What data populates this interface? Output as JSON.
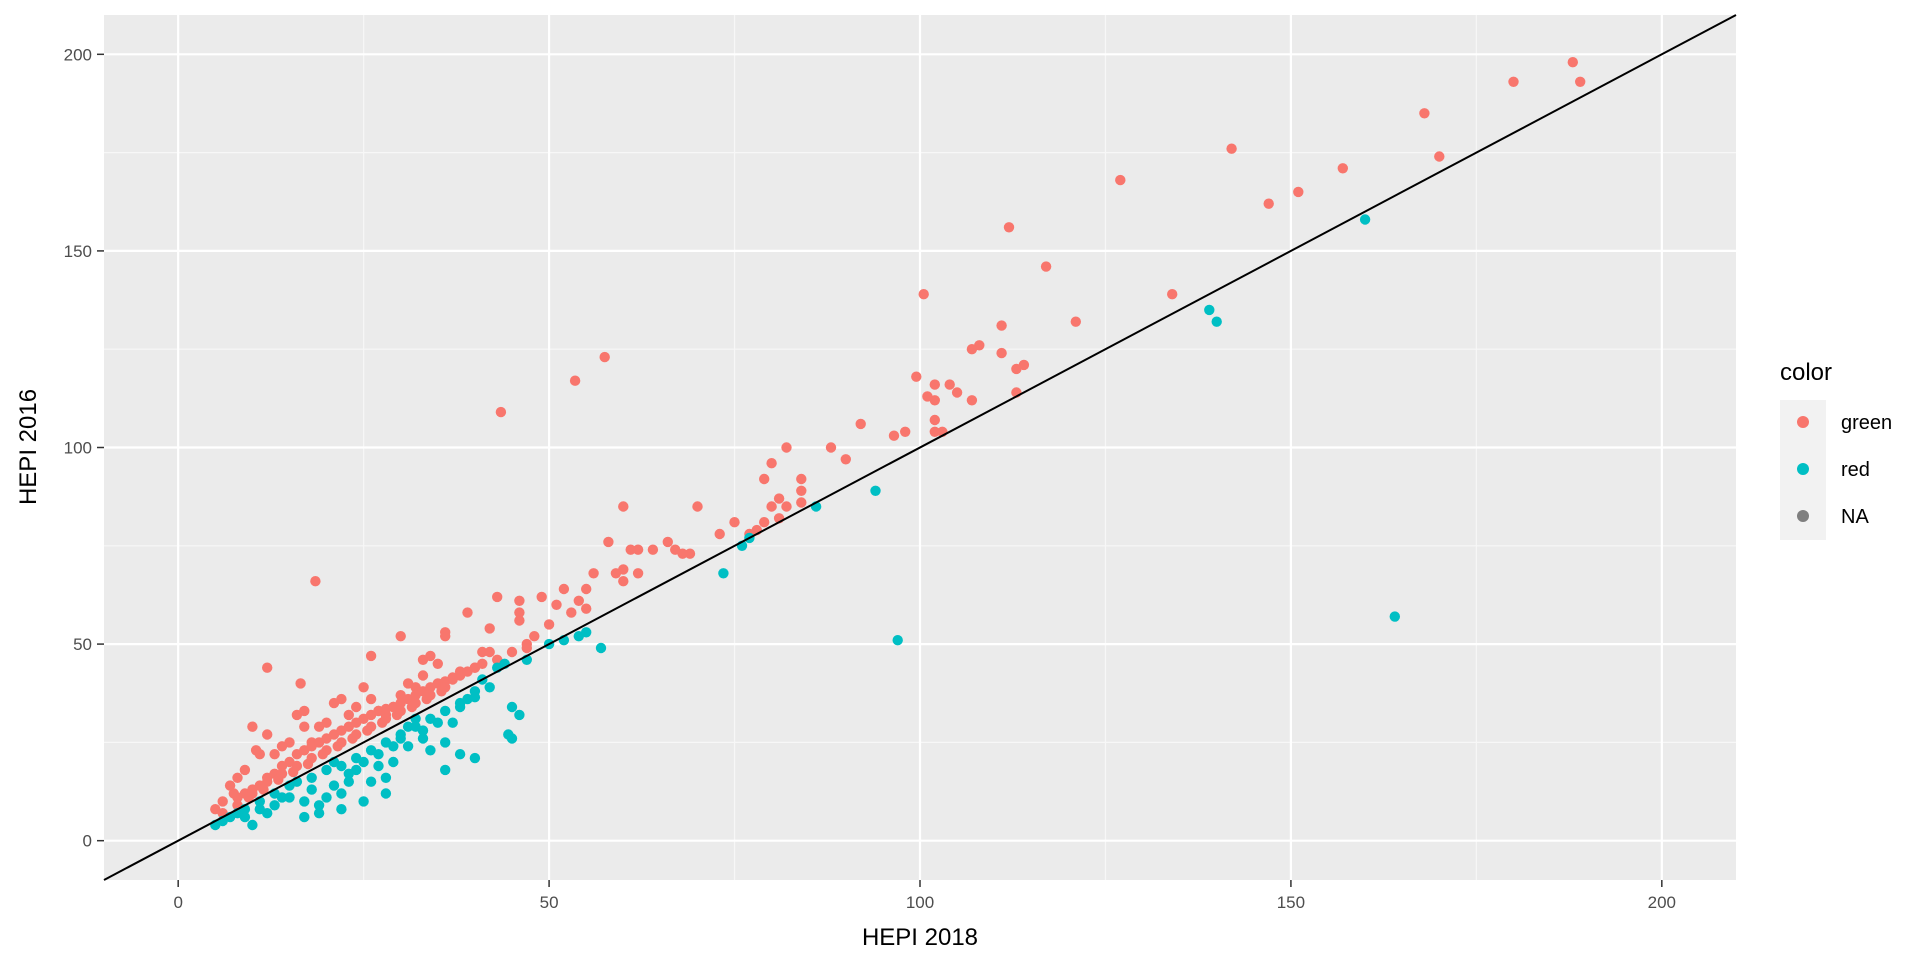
{
  "chart_data": {
    "type": "scatter",
    "title": "",
    "xlabel": "HEPI 2018",
    "ylabel": "HEPI 2016",
    "xlim": [
      -10,
      210
    ],
    "ylim": [
      -10,
      210
    ],
    "x_ticks": [
      0,
      50,
      100,
      150,
      200
    ],
    "y_ticks": [
      0,
      50,
      100,
      150,
      200
    ],
    "x_tick_labels": [
      "0",
      "50",
      "100",
      "150",
      "200"
    ],
    "y_tick_labels": [
      "0",
      "50",
      "100",
      "150",
      "200"
    ],
    "grid": true,
    "reference_line": {
      "slope": 1,
      "intercept": 0,
      "color": "#000000"
    },
    "legend": {
      "title": "color",
      "position": "right",
      "entries": [
        {
          "label": "green",
          "color": "#F8766D"
        },
        {
          "label": "red",
          "color": "#00BFC4"
        },
        {
          "label": "NA",
          "color": "#7F7F7F"
        }
      ]
    },
    "series": [
      {
        "name": "green",
        "color": "#F8766D",
        "points": [
          [
            188,
            198
          ],
          [
            189,
            193
          ],
          [
            180,
            193
          ],
          [
            168,
            185
          ],
          [
            170,
            174
          ],
          [
            157,
            171
          ],
          [
            151,
            165
          ],
          [
            147,
            162
          ],
          [
            142,
            176
          ],
          [
            127,
            168
          ],
          [
            112,
            156
          ],
          [
            117,
            146
          ],
          [
            134,
            139
          ],
          [
            121,
            132
          ],
          [
            100.5,
            139
          ],
          [
            111,
            131
          ],
          [
            108,
            126
          ],
          [
            107,
            125
          ],
          [
            111,
            124
          ],
          [
            114,
            121
          ],
          [
            113,
            120
          ],
          [
            113,
            114
          ],
          [
            99.5,
            118
          ],
          [
            102,
            116
          ],
          [
            104,
            116
          ],
          [
            101,
            113
          ],
          [
            102,
            112
          ],
          [
            105,
            114
          ],
          [
            107,
            112
          ],
          [
            102,
            107
          ],
          [
            102,
            104
          ],
          [
            103,
            104
          ],
          [
            98,
            104
          ],
          [
            96.5,
            103
          ],
          [
            92,
            106
          ],
          [
            88,
            100
          ],
          [
            90,
            97
          ],
          [
            82,
            100
          ],
          [
            80,
            96
          ],
          [
            79,
            92
          ],
          [
            84,
            92
          ],
          [
            84,
            89
          ],
          [
            81,
            87
          ],
          [
            80,
            85
          ],
          [
            82,
            85
          ],
          [
            84,
            86
          ],
          [
            81,
            82
          ],
          [
            79,
            81
          ],
          [
            78,
            79
          ],
          [
            77,
            78
          ],
          [
            75,
            81
          ],
          [
            73,
            78
          ],
          [
            70,
            85
          ],
          [
            69,
            73
          ],
          [
            68,
            73
          ],
          [
            67,
            74
          ],
          [
            66,
            76
          ],
          [
            64,
            74
          ],
          [
            62,
            74
          ],
          [
            61,
            74
          ],
          [
            62,
            68
          ],
          [
            60,
            85
          ],
          [
            60,
            69
          ],
          [
            60,
            66
          ],
          [
            59,
            68
          ],
          [
            58,
            76
          ],
          [
            57.5,
            123
          ],
          [
            53.5,
            117
          ],
          [
            43.5,
            109
          ],
          [
            56,
            68
          ],
          [
            55,
            64
          ],
          [
            54,
            61
          ],
          [
            55,
            59
          ],
          [
            53,
            58
          ],
          [
            52,
            64
          ],
          [
            51,
            60
          ],
          [
            50,
            55
          ],
          [
            49,
            62
          ],
          [
            48,
            52
          ],
          [
            47,
            50
          ],
          [
            46,
            61
          ],
          [
            46,
            58
          ],
          [
            46,
            56
          ],
          [
            43,
            62
          ],
          [
            42,
            54
          ],
          [
            42,
            48
          ],
          [
            41,
            48
          ],
          [
            40,
            44
          ],
          [
            39,
            58
          ],
          [
            38,
            43
          ],
          [
            37,
            41
          ],
          [
            36,
            53
          ],
          [
            36,
            52
          ],
          [
            35,
            45
          ],
          [
            34,
            47
          ],
          [
            33,
            42
          ],
          [
            33,
            46
          ],
          [
            32,
            39
          ],
          [
            31,
            40
          ],
          [
            30,
            52
          ],
          [
            30,
            37
          ],
          [
            29,
            34
          ],
          [
            28,
            32
          ],
          [
            27,
            33
          ],
          [
            26,
            47
          ],
          [
            26,
            36
          ],
          [
            25,
            39
          ],
          [
            24,
            34
          ],
          [
            23,
            32
          ],
          [
            22,
            36
          ],
          [
            21,
            35
          ],
          [
            20,
            30
          ],
          [
            19,
            29
          ],
          [
            18.5,
            66
          ],
          [
            18,
            25
          ],
          [
            17,
            33
          ],
          [
            17,
            29
          ],
          [
            16.5,
            40
          ],
          [
            16,
            32
          ],
          [
            15,
            25
          ],
          [
            14,
            24
          ],
          [
            13,
            22
          ],
          [
            12,
            44
          ],
          [
            12,
            27
          ],
          [
            11,
            22
          ],
          [
            10.5,
            23
          ],
          [
            10,
            29
          ],
          [
            9,
            18
          ],
          [
            8,
            16
          ],
          [
            7.5,
            12
          ],
          [
            7,
            14
          ],
          [
            6,
            10
          ],
          [
            5,
            8
          ],
          [
            6,
            7
          ],
          [
            8,
            9
          ],
          [
            9,
            12
          ],
          [
            10,
            13
          ],
          [
            11,
            14
          ],
          [
            12,
            16
          ],
          [
            13,
            17
          ],
          [
            14,
            19
          ],
          [
            15,
            20
          ],
          [
            16,
            22
          ],
          [
            17,
            23
          ],
          [
            18,
            24
          ],
          [
            19,
            25
          ],
          [
            20,
            26
          ],
          [
            21,
            27
          ],
          [
            22,
            28
          ],
          [
            23,
            29
          ],
          [
            24,
            30
          ],
          [
            25,
            31
          ],
          [
            26,
            32
          ],
          [
            27,
            33
          ],
          [
            28,
            33.5
          ],
          [
            29,
            34
          ],
          [
            30,
            35
          ],
          [
            31,
            36
          ],
          [
            32,
            37
          ],
          [
            33,
            38
          ],
          [
            34,
            39
          ],
          [
            35,
            40
          ],
          [
            36,
            40.5
          ],
          [
            37,
            41.5
          ],
          [
            38,
            42
          ],
          [
            39,
            43
          ],
          [
            40,
            44
          ],
          [
            41,
            45
          ],
          [
            43,
            46
          ],
          [
            45,
            48
          ],
          [
            47,
            49
          ],
          [
            9.5,
            11
          ],
          [
            11.5,
            13
          ],
          [
            13.5,
            15.5
          ],
          [
            15.5,
            17.5
          ],
          [
            17.5,
            19.5
          ],
          [
            19.5,
            22
          ],
          [
            21.5,
            24
          ],
          [
            23.5,
            26
          ],
          [
            25.5,
            28
          ],
          [
            27.5,
            30
          ],
          [
            29.5,
            32
          ],
          [
            31.5,
            34
          ],
          [
            33.5,
            36
          ],
          [
            35.5,
            38
          ],
          [
            18,
            21
          ],
          [
            20,
            23
          ],
          [
            22,
            25
          ],
          [
            24,
            27
          ],
          [
            26,
            29
          ],
          [
            28,
            31
          ],
          [
            30,
            33
          ],
          [
            32,
            35
          ],
          [
            34,
            37
          ],
          [
            12,
            15
          ],
          [
            14,
            17
          ],
          [
            16,
            19
          ],
          [
            10,
            12
          ],
          [
            8,
            11
          ],
          [
            36,
            39
          ]
        ]
      },
      {
        "name": "red",
        "color": "#00BFC4",
        "points": [
          [
            160,
            158
          ],
          [
            164,
            57
          ],
          [
            139,
            135
          ],
          [
            140,
            132
          ],
          [
            97,
            51
          ],
          [
            94,
            89
          ],
          [
            86,
            85
          ],
          [
            77,
            77
          ],
          [
            76,
            75
          ],
          [
            73.5,
            68
          ],
          [
            57,
            49
          ],
          [
            55,
            53
          ],
          [
            54,
            52
          ],
          [
            52,
            51
          ],
          [
            50,
            50
          ],
          [
            47,
            46
          ],
          [
            46,
            32
          ],
          [
            45,
            34
          ],
          [
            45,
            26
          ],
          [
            44.5,
            27
          ],
          [
            44,
            45
          ],
          [
            43,
            44
          ],
          [
            41,
            41
          ],
          [
            40,
            38
          ],
          [
            39,
            36
          ],
          [
            38,
            34
          ],
          [
            40,
            21
          ],
          [
            38,
            22
          ],
          [
            36,
            25
          ],
          [
            36,
            18
          ],
          [
            35,
            30
          ],
          [
            34,
            23
          ],
          [
            33,
            28
          ],
          [
            32,
            31
          ],
          [
            31,
            29
          ],
          [
            30,
            26
          ],
          [
            29,
            24
          ],
          [
            29,
            20
          ],
          [
            28,
            16
          ],
          [
            28,
            12
          ],
          [
            27,
            22
          ],
          [
            26,
            15
          ],
          [
            25,
            10
          ],
          [
            24,
            18
          ],
          [
            23,
            15
          ],
          [
            22,
            12
          ],
          [
            22,
            8
          ],
          [
            21,
            20
          ],
          [
            20,
            11
          ],
          [
            19,
            9
          ],
          [
            19,
            7
          ],
          [
            18,
            13
          ],
          [
            17,
            10
          ],
          [
            17,
            6
          ],
          [
            16,
            15
          ],
          [
            15,
            14
          ],
          [
            14,
            11
          ],
          [
            13,
            9
          ],
          [
            12,
            7
          ],
          [
            11,
            8
          ],
          [
            10,
            4
          ],
          [
            9,
            6
          ],
          [
            8,
            7
          ],
          [
            7,
            6
          ],
          [
            6,
            5
          ],
          [
            5,
            4
          ],
          [
            18,
            16
          ],
          [
            20,
            18
          ],
          [
            22,
            19
          ],
          [
            24,
            21
          ],
          [
            26,
            23
          ],
          [
            28,
            25
          ],
          [
            30,
            27
          ],
          [
            32,
            29
          ],
          [
            34,
            31
          ],
          [
            36,
            33
          ],
          [
            38,
            35
          ],
          [
            40,
            36.5
          ],
          [
            42,
            39
          ],
          [
            25,
            20
          ],
          [
            27,
            19
          ],
          [
            23,
            17
          ],
          [
            21,
            14
          ],
          [
            31,
            24
          ],
          [
            33,
            26
          ],
          [
            37,
            30
          ],
          [
            15,
            11
          ],
          [
            13,
            12
          ],
          [
            11,
            10
          ],
          [
            9,
            8
          ]
        ]
      }
    ]
  }
}
